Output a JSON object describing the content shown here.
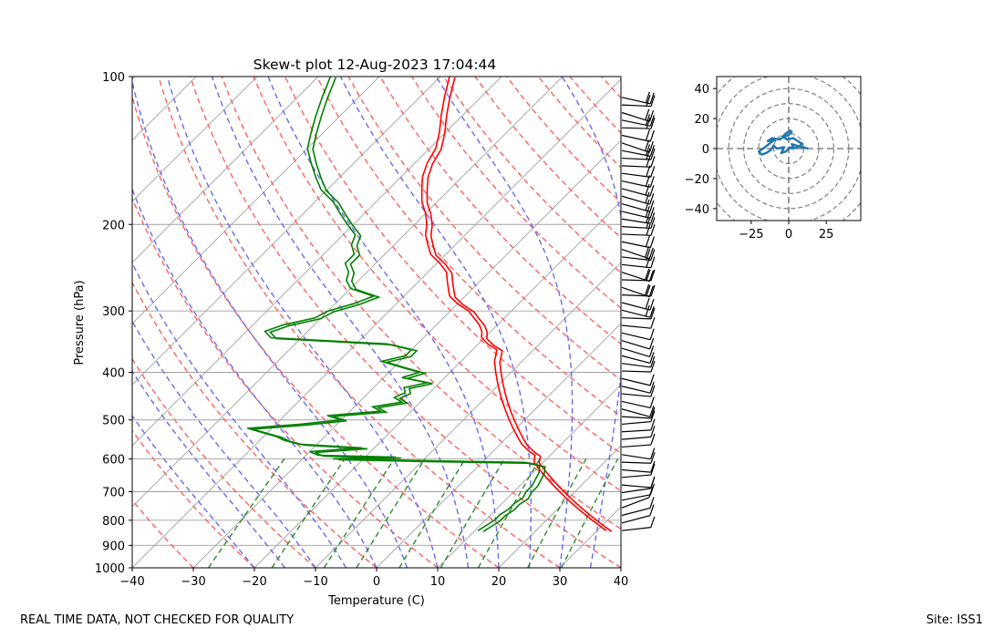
{
  "figure": {
    "footer_left": "REAL TIME DATA, NOT CHECKED FOR QUALITY",
    "footer_right": "Site: ISS1"
  },
  "chart_data": [
    {
      "type": "line",
      "kind": "skew-t",
      "title": "Skew-t plot 12-Aug-2023 17:04:44",
      "xlabel": "Temperature (C)",
      "ylabel": "Pressure (hPa)",
      "xlim": [
        -40,
        40
      ],
      "ylim": [
        1000,
        100
      ],
      "yscale": "log",
      "grid": true,
      "xticks": [
        -40,
        -30,
        -20,
        -10,
        0,
        10,
        20,
        30,
        40
      ],
      "xtick_labels": [
        "−40",
        "−30",
        "−20",
        "−10",
        "0",
        "10",
        "20",
        "30",
        "40"
      ],
      "yticks": [
        1000,
        900,
        800,
        700,
        600,
        500,
        400,
        300,
        200,
        100
      ],
      "ytick_labels": [
        "1000",
        "900",
        "800",
        "700",
        "600",
        "500",
        "400",
        "300",
        "200",
        "100"
      ],
      "series": [
        {
          "name": "Temperature",
          "color": "#ff0000",
          "p": [
            840,
            820,
            800,
            780,
            760,
            740,
            720,
            700,
            680,
            660,
            640,
            620,
            610,
            600,
            590,
            580,
            560,
            540,
            520,
            500,
            480,
            460,
            440,
            420,
            400,
            380,
            360,
            350,
            340,
            330,
            320,
            310,
            300,
            290,
            280,
            270,
            260,
            250,
            240,
            230,
            220,
            210,
            200,
            190,
            180,
            170,
            160,
            150,
            140,
            130,
            120,
            110,
            100
          ],
          "t": [
            31.5,
            29.5,
            27.5,
            25.5,
            23.5,
            21.5,
            19.5,
            17.5,
            15.5,
            13.5,
            11.5,
            9.5,
            8.5,
            8.0,
            7.5,
            6.0,
            3.5,
            1.5,
            -0.5,
            -2.5,
            -4.5,
            -6.5,
            -8.5,
            -10.5,
            -12.5,
            -14.5,
            -16.0,
            -18.5,
            -20.5,
            -21.5,
            -23.0,
            -25.0,
            -27.0,
            -30.0,
            -32.5,
            -34.0,
            -35.5,
            -37.0,
            -39.5,
            -42.5,
            -44.5,
            -46.5,
            -48.0,
            -50.0,
            -52.5,
            -54.5,
            -56.5,
            -58.0,
            -59.0,
            -61.0,
            -63.5,
            -66.0,
            -68.5
          ]
        },
        {
          "name": "Dewpoint",
          "color": "#008000",
          "p": [
            840,
            820,
            800,
            780,
            760,
            740,
            720,
            700,
            680,
            660,
            640,
            620,
            610,
            605,
            600,
            595,
            590,
            580,
            570,
            560,
            550,
            540,
            530,
            520,
            510,
            500,
            490,
            480,
            470,
            460,
            450,
            440,
            430,
            420,
            410,
            400,
            390,
            380,
            370,
            360,
            350,
            340,
            330,
            320,
            310,
            300,
            290,
            280,
            270,
            260,
            250,
            240,
            230,
            220,
            210,
            200,
            190,
            180,
            170,
            160,
            150,
            140,
            130,
            120,
            110,
            100
          ],
          "t": [
            10.5,
            11.0,
            11.5,
            11.5,
            12.0,
            12.0,
            12.5,
            12.0,
            12.0,
            11.5,
            11.0,
            10.0,
            7.0,
            -10.0,
            -25.0,
            -15.0,
            -28.0,
            -30.0,
            -22.0,
            -33.0,
            -36.0,
            -38.0,
            -41.0,
            -44.0,
            -36.0,
            -30.0,
            -33.0,
            -25.0,
            -27.0,
            -23.0,
            -25.0,
            -24.0,
            -25.0,
            -22.0,
            -27.0,
            -25.0,
            -29.0,
            -33.0,
            -30.0,
            -30.0,
            -35.0,
            -55.0,
            -57.0,
            -55.0,
            -51.0,
            -50.0,
            -47.0,
            -45.0,
            -50.0,
            -52.0,
            -53.0,
            -55.0,
            -55.0,
            -57.0,
            -58.0,
            -61.0,
            -64.0,
            -67.0,
            -71.0,
            -74.0,
            -77.0,
            -80.0,
            -82.0,
            -84.0,
            -86.0,
            -88.0
          ]
        }
      ],
      "reference_lines": {
        "dry_adiabats_color": "#ff6060",
        "moist_adiabats_color": "#6a6aee",
        "mixing_ratio_color": "#2e8b2e",
        "isotherm_color": "#a0a0a0"
      },
      "wind_barbs": "plotted to the right of the profile"
    },
    {
      "type": "line",
      "kind": "hodograph",
      "xlim": [
        -48,
        48
      ],
      "ylim": [
        -48,
        48
      ],
      "xticks": [
        -25,
        0,
        25
      ],
      "xtick_labels": [
        "−25",
        "0",
        "25"
      ],
      "yticks": [
        -40,
        -20,
        0,
        20,
        40
      ],
      "ytick_labels": [
        "−40",
        "−20",
        "0",
        "20",
        "40"
      ],
      "rings": [
        10,
        20,
        30,
        40,
        50,
        60
      ],
      "color": "#1f77b4",
      "u": [
        13,
        9,
        5,
        2,
        3,
        0,
        -2,
        -5,
        -3,
        -8,
        -10,
        -12,
        -15,
        -18,
        -20,
        -17,
        -12,
        -9,
        -14,
        -11,
        -6,
        -3,
        0,
        2,
        1,
        -2,
        -4,
        -1,
        3,
        6,
        9,
        6,
        3,
        0
      ],
      "v": [
        0,
        1,
        2,
        3,
        1,
        0,
        -2,
        -3,
        1,
        0,
        2,
        -1,
        -3,
        -4,
        -2,
        0,
        4,
        6,
        5,
        7,
        6,
        8,
        9,
        11,
        12,
        10,
        8,
        6,
        7,
        5,
        3,
        1,
        0,
        1
      ]
    }
  ]
}
